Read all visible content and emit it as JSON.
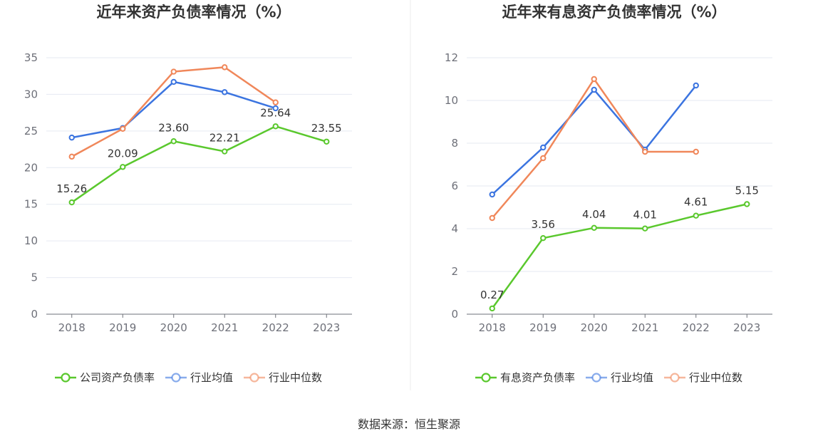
{
  "source_text": "数据来源：恒生聚源",
  "chart_data": [
    {
      "type": "line",
      "title": "近年来资产负债率情况（%）",
      "categories": [
        "2018",
        "2019",
        "2020",
        "2021",
        "2022",
        "2023"
      ],
      "ylim": [
        0,
        35
      ],
      "yticks": [
        "0",
        "5",
        "10",
        "15",
        "20",
        "25",
        "30",
        "35"
      ],
      "grid": true,
      "legend_position": "bottom",
      "series": [
        {
          "name": "公司资产负债率",
          "color": "#5ac82d",
          "labeled": true,
          "values": [
            15.26,
            20.09,
            23.6,
            22.21,
            25.64,
            23.55
          ],
          "labels": [
            "15.26",
            "20.09",
            "23.60",
            "22.21",
            "25.64",
            "23.55"
          ]
        },
        {
          "name": "行业均值",
          "color": "#3b74e0",
          "labeled": false,
          "values": [
            24.1,
            25.4,
            31.7,
            30.3,
            28.1,
            null
          ]
        },
        {
          "name": "行业中位数",
          "color": "#f0875a",
          "labeled": false,
          "values": [
            21.5,
            25.3,
            33.1,
            33.7,
            28.9,
            null
          ]
        }
      ]
    },
    {
      "type": "line",
      "title": "近年来有息资产负债率情况（%）",
      "categories": [
        "2018",
        "2019",
        "2020",
        "2021",
        "2022",
        "2023"
      ],
      "ylim": [
        0,
        12
      ],
      "yticks": [
        "0",
        "2",
        "4",
        "6",
        "8",
        "10",
        "12"
      ],
      "grid": true,
      "legend_position": "bottom",
      "series": [
        {
          "name": "有息资产负债率",
          "color": "#5ac82d",
          "labeled": true,
          "values": [
            0.27,
            3.56,
            4.04,
            4.01,
            4.61,
            5.15
          ],
          "labels": [
            "0.27",
            "3.56",
            "4.04",
            "4.01",
            "4.61",
            "5.15"
          ]
        },
        {
          "name": "行业均值",
          "color": "#3b74e0",
          "labeled": false,
          "values": [
            5.6,
            7.8,
            10.5,
            7.7,
            10.7,
            null
          ]
        },
        {
          "name": "行业中位数",
          "color": "#f0875a",
          "labeled": false,
          "values": [
            4.5,
            7.3,
            11.0,
            7.6,
            7.6,
            null
          ]
        }
      ]
    }
  ]
}
